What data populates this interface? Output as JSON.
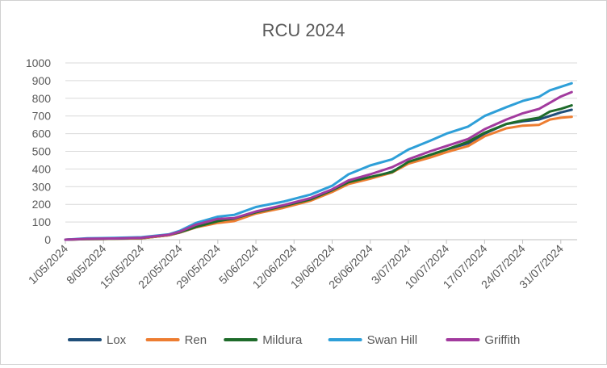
{
  "chart_data": {
    "type": "line",
    "title": "RCU 2024",
    "xlabel": "",
    "ylabel": "",
    "ylim": [
      0,
      1000
    ],
    "yticks": [
      0,
      100,
      200,
      300,
      400,
      500,
      600,
      700,
      800,
      900,
      1000
    ],
    "xlim": [
      "2024-05-01",
      "2024-08-03"
    ],
    "xticks": [
      "1/05/2024",
      "8/05/2024",
      "15/05/2024",
      "22/05/2024",
      "29/05/2024",
      "5/06/2024",
      "12/06/2024",
      "19/06/2024",
      "26/06/2024",
      "3/07/2024",
      "10/07/2024",
      "17/07/2024",
      "24/07/2024",
      "31/07/2024"
    ],
    "grid": true,
    "legend": "bottom",
    "x": [
      "2024-05-01",
      "2024-05-05",
      "2024-05-10",
      "2024-05-15",
      "2024-05-20",
      "2024-05-22",
      "2024-05-25",
      "2024-05-29",
      "2024-06-01",
      "2024-06-05",
      "2024-06-10",
      "2024-06-15",
      "2024-06-19",
      "2024-06-22",
      "2024-06-26",
      "2024-06-30",
      "2024-07-03",
      "2024-07-07",
      "2024-07-10",
      "2024-07-14",
      "2024-07-17",
      "2024-07-21",
      "2024-07-24",
      "2024-07-27",
      "2024-07-29",
      "2024-07-31",
      "2024-08-02"
    ],
    "series": [
      {
        "name": "Lox",
        "color": "#1f4e79",
        "values": [
          0,
          3,
          5,
          8,
          25,
          40,
          70,
          100,
          112,
          150,
          185,
          225,
          275,
          320,
          350,
          385,
          435,
          480,
          510,
          545,
          600,
          655,
          670,
          680,
          700,
          720,
          735
        ]
      },
      {
        "name": "Ren",
        "color": "#ed7d31",
        "values": [
          0,
          3,
          5,
          8,
          25,
          40,
          70,
          95,
          105,
          148,
          180,
          220,
          270,
          315,
          345,
          380,
          430,
          465,
          495,
          530,
          585,
          630,
          645,
          650,
          680,
          690,
          695
        ]
      },
      {
        "name": "Mildura",
        "color": "#1e6b2a",
        "values": [
          0,
          4,
          6,
          10,
          28,
          42,
          72,
          105,
          120,
          155,
          190,
          228,
          280,
          325,
          355,
          382,
          440,
          480,
          510,
          555,
          605,
          655,
          675,
          690,
          725,
          740,
          760
        ]
      },
      {
        "name": "Swan Hill",
        "color": "#2e9fd8",
        "values": [
          0,
          8,
          10,
          14,
          30,
          50,
          95,
          130,
          140,
          185,
          215,
          255,
          305,
          370,
          420,
          455,
          510,
          560,
          600,
          640,
          700,
          750,
          785,
          808,
          845,
          865,
          885
        ]
      },
      {
        "name": "Griffith",
        "color": "#a23a9e",
        "values": [
          0,
          5,
          7,
          11,
          28,
          45,
          85,
          118,
          122,
          160,
          195,
          235,
          285,
          335,
          370,
          410,
          455,
          500,
          530,
          570,
          625,
          680,
          715,
          740,
          775,
          810,
          835
        ]
      }
    ]
  }
}
